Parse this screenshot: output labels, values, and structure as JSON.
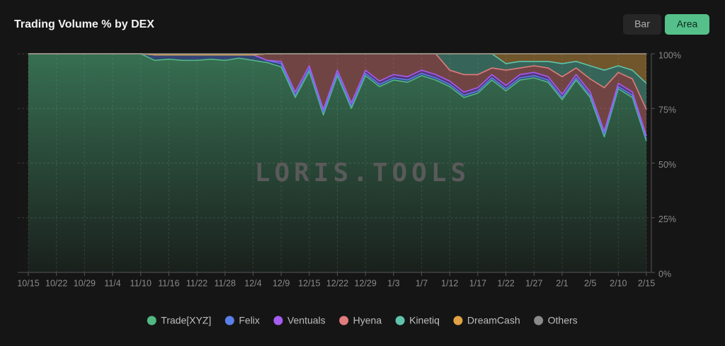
{
  "chart_data": {
    "type": "area",
    "stacked": true,
    "title": "Trading Volume % by DEX",
    "view_options": [
      "Bar",
      "Area"
    ],
    "selected_view": "Area",
    "watermark": "LORIS.TOOLS",
    "categories": [
      "10/15",
      null,
      "10/22",
      null,
      "10/29",
      null,
      "11/4",
      null,
      "11/10",
      null,
      "11/16",
      null,
      "11/22",
      null,
      "11/28",
      null,
      "12/4",
      null,
      "12/9",
      null,
      "12/15",
      null,
      "12/22",
      null,
      "12/29",
      null,
      "1/3",
      null,
      "1/7",
      null,
      "1/12",
      null,
      "1/17",
      null,
      "1/22",
      null,
      "1/27",
      null,
      "2/1",
      null,
      "2/5",
      null,
      "2/10",
      null,
      "2/15"
    ],
    "ylim": [
      0,
      100
    ],
    "yticks": [
      {
        "value": 0,
        "label": "0%"
      },
      {
        "value": 25,
        "label": "25%"
      },
      {
        "value": 50,
        "label": "50%"
      },
      {
        "value": 75,
        "label": "75%"
      },
      {
        "value": 100,
        "label": "100%"
      }
    ],
    "grid": true,
    "legend_position": "bottom",
    "series": [
      {
        "name": "Trade[XYZ]",
        "color": "#52b883",
        "values": [
          100,
          100,
          100,
          100,
          100,
          100,
          100,
          100,
          100,
          97,
          97.5,
          97,
          97,
          97.5,
          97,
          98,
          97,
          96,
          94,
          80,
          92,
          72,
          90,
          75,
          90,
          85,
          88,
          87,
          90,
          88,
          85,
          80,
          82,
          88,
          83,
          88,
          89,
          87,
          79,
          88,
          80,
          62,
          84,
          80,
          60
        ]
      },
      {
        "name": "Felix",
        "color": "#5b7fe8",
        "values": [
          0,
          0,
          0,
          0,
          0,
          0,
          0,
          0,
          0,
          2.5,
          2,
          2.5,
          2.5,
          2,
          2.5,
          1.5,
          2.5,
          1,
          1.5,
          1,
          1,
          1,
          1,
          1,
          1,
          1,
          1,
          1,
          1,
          1,
          1,
          1,
          1,
          1,
          1,
          1,
          1,
          1,
          1,
          1,
          1,
          1,
          1,
          1,
          1
        ]
      },
      {
        "name": "Ventuals",
        "color": "#a65cf0",
        "values": [
          0,
          0,
          0,
          0,
          0,
          0,
          0,
          0,
          0,
          0,
          0,
          0,
          0,
          0,
          0,
          0,
          0,
          0,
          1,
          1.5,
          1.5,
          1.5,
          1.5,
          1.5,
          1.5,
          1.5,
          1.5,
          1.5,
          1.5,
          1.5,
          1.5,
          1.5,
          1.5,
          1.5,
          1.5,
          1.5,
          1.5,
          1.5,
          1.5,
          1.5,
          1.5,
          1.5,
          1.5,
          1.5,
          1.5
        ]
      },
      {
        "name": "Hyena",
        "color": "#e07c7c",
        "values": [
          0,
          0,
          0,
          0,
          0,
          0,
          0,
          0,
          0,
          0,
          0,
          0,
          0,
          0,
          0,
          0,
          0,
          3,
          3.5,
          17.5,
          5.5,
          25.5,
          7.5,
          22.5,
          7.5,
          12.5,
          9.5,
          10.5,
          7.5,
          9.5,
          5,
          8,
          6,
          3,
          7,
          3,
          3,
          4,
          8,
          3,
          6,
          20,
          5,
          6,
          12
        ]
      },
      {
        "name": "Kinetiq",
        "color": "#5fc4aa",
        "values": [
          0,
          0,
          0,
          0,
          0,
          0,
          0,
          0,
          0,
          0,
          0,
          0,
          0,
          0,
          0,
          0,
          0,
          0,
          0,
          0,
          0,
          0,
          0,
          0,
          0,
          0,
          0,
          0,
          0,
          0,
          7.5,
          9.5,
          9.5,
          6.5,
          3,
          3,
          2,
          3,
          6,
          3,
          6,
          8,
          3,
          4,
          12
        ]
      },
      {
        "name": "DreamCash",
        "color": "#e0a244",
        "values": [
          0,
          0,
          0,
          0,
          0,
          0,
          0,
          0,
          0,
          0,
          0,
          0,
          0,
          0,
          0,
          0,
          0,
          0,
          0,
          0,
          0,
          0,
          0,
          0,
          0,
          0,
          0,
          0,
          0,
          0,
          0,
          0,
          0,
          0,
          4.5,
          3.5,
          3.5,
          3.5,
          4.5,
          3.5,
          5.5,
          7.5,
          5.5,
          7.5,
          13.5
        ]
      },
      {
        "name": "Others",
        "color": "#8a8a8a",
        "values": [
          0,
          0,
          0,
          0,
          0,
          0,
          0,
          0,
          0,
          0.5,
          0.5,
          0.5,
          0.5,
          0.5,
          0.5,
          0.5,
          0.5,
          0,
          0,
          0,
          0,
          0,
          0,
          0,
          0,
          0,
          0,
          0,
          0,
          0,
          0,
          0,
          0,
          0,
          0,
          0,
          0,
          0,
          0,
          0,
          0,
          0,
          0,
          0,
          0
        ]
      }
    ]
  }
}
